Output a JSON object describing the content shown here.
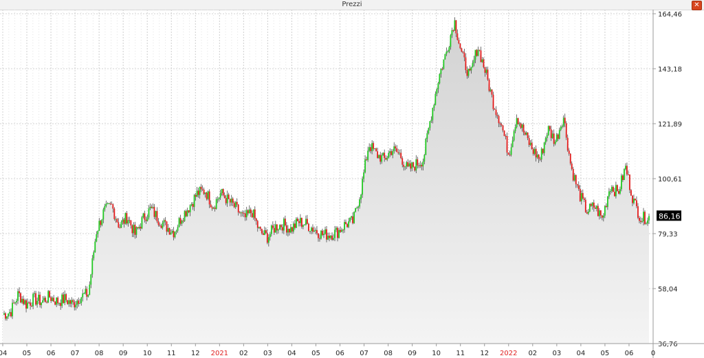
{
  "window": {
    "title": "Prezzi"
  },
  "colors": {
    "up": "#21c821",
    "down": "#e01818",
    "area": "#dcdcdc",
    "grid": "#d0d0d0",
    "current_bg": "#000000"
  },
  "chart_data": {
    "type": "candlestick",
    "title": "Prezzi",
    "ylim": [
      36.76,
      164.46
    ],
    "y_ticks": [
      "164,46",
      "143,18",
      "121,89",
      "100,61",
      "79,33",
      "58,04",
      "36,76"
    ],
    "y_tick_values": [
      164.46,
      143.18,
      121.89,
      100.61,
      79.33,
      58.04,
      36.76
    ],
    "x_ticks": [
      {
        "label": "04",
        "red": false
      },
      {
        "label": "05",
        "red": false
      },
      {
        "label": "06",
        "red": false
      },
      {
        "label": "07",
        "red": false
      },
      {
        "label": "08",
        "red": false
      },
      {
        "label": "09",
        "red": false
      },
      {
        "label": "10",
        "red": false
      },
      {
        "label": "11",
        "red": false
      },
      {
        "label": "12",
        "red": false
      },
      {
        "label": "2021",
        "red": true
      },
      {
        "label": "02",
        "red": false
      },
      {
        "label": "03",
        "red": false
      },
      {
        "label": "04",
        "red": false
      },
      {
        "label": "05",
        "red": false
      },
      {
        "label": "06",
        "red": false
      },
      {
        "label": "07",
        "red": false
      },
      {
        "label": "08",
        "red": false
      },
      {
        "label": "09",
        "red": false
      },
      {
        "label": "10",
        "red": false
      },
      {
        "label": "11",
        "red": false
      },
      {
        "label": "12",
        "red": false
      },
      {
        "label": "2022",
        "red": true
      },
      {
        "label": "02",
        "red": false
      },
      {
        "label": "03",
        "red": false
      },
      {
        "label": "04",
        "red": false
      },
      {
        "label": "05",
        "red": false
      },
      {
        "label": "06",
        "red": false
      },
      {
        "label": "0",
        "red": false
      }
    ],
    "current_value": "86,16",
    "current": 86.16,
    "grid": true,
    "price_path": [
      48,
      49,
      56,
      52,
      54,
      53,
      55,
      53,
      54,
      52,
      55,
      56,
      80,
      88,
      90,
      82,
      86,
      79,
      85,
      89,
      85,
      82,
      80,
      86,
      90,
      95,
      96,
      90,
      95,
      92,
      89,
      85,
      88,
      80,
      78,
      82,
      83,
      81,
      84,
      83,
      81,
      79,
      79,
      80,
      83,
      84,
      96,
      114,
      110,
      108,
      112,
      110,
      104,
      106,
      108,
      125,
      140,
      150,
      162,
      148,
      140,
      152,
      142,
      130,
      122,
      110,
      125,
      118,
      112,
      108,
      120,
      115,
      125,
      105,
      95,
      88,
      90,
      85,
      98,
      95,
      105,
      92,
      85,
      86
    ],
    "volatility": 2.5
  }
}
